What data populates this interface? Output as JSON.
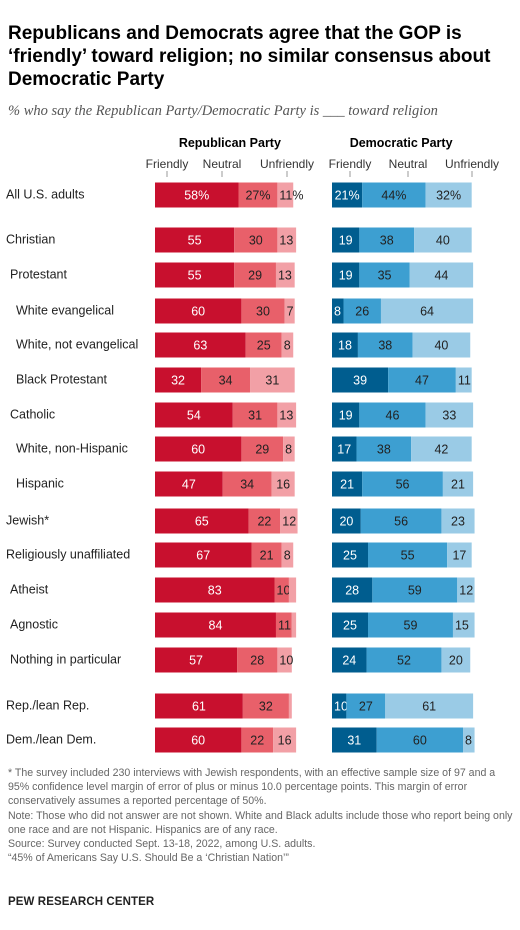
{
  "title": "Republicans and Democrats agree that the GOP is ‘friendly’ toward religion; no similar consensus about Democratic Party",
  "subtitle": "% who say the Republican Party/Democratic Party is ___ toward religion",
  "colors": {
    "rep": [
      "#c8102e",
      "#e8606a",
      "#f2a0a6"
    ],
    "dem": [
      "#005d8f",
      "#3d9fd1",
      "#9acbe6"
    ]
  },
  "chart_data": {
    "type": "bar",
    "orientation": "horizontal-stacked",
    "panels": [
      {
        "name": "Republican Party",
        "series": [
          "Friendly",
          "Neutral",
          "Unfriendly"
        ]
      },
      {
        "name": "Democratic Party",
        "series": [
          "Friendly",
          "Neutral",
          "Unfriendly"
        ]
      }
    ],
    "rows": [
      {
        "label": "All U.S. adults",
        "indent": 0,
        "rep": [
          58,
          27,
          11
        ],
        "dem": [
          21,
          44,
          32
        ],
        "pct": true
      },
      {
        "label": "Christian",
        "indent": 0,
        "rep": [
          55,
          30,
          13
        ],
        "dem": [
          19,
          38,
          40
        ]
      },
      {
        "label": "Protestant",
        "indent": 1,
        "rep": [
          55,
          29,
          13
        ],
        "dem": [
          19,
          35,
          44
        ]
      },
      {
        "label": "White evangelical",
        "indent": 2,
        "rep": [
          60,
          30,
          7
        ],
        "dem": [
          8,
          26,
          64
        ]
      },
      {
        "label": "White, not evangelical",
        "indent": 2,
        "rep": [
          63,
          25,
          8
        ],
        "dem": [
          18,
          38,
          40
        ]
      },
      {
        "label": "Black Protestant",
        "indent": 2,
        "rep": [
          32,
          34,
          31
        ],
        "dem": [
          39,
          47,
          11
        ]
      },
      {
        "label": "Catholic",
        "indent": 1,
        "rep": [
          54,
          31,
          13
        ],
        "dem": [
          19,
          46,
          33
        ]
      },
      {
        "label": "White, non-Hispanic",
        "indent": 2,
        "rep": [
          60,
          29,
          8
        ],
        "dem": [
          17,
          38,
          42
        ]
      },
      {
        "label": "Hispanic",
        "indent": 2,
        "rep": [
          47,
          34,
          16
        ],
        "dem": [
          21,
          56,
          21
        ]
      },
      {
        "label": "Jewish*",
        "indent": 0,
        "rep": [
          65,
          22,
          12
        ],
        "dem": [
          20,
          56,
          23
        ]
      },
      {
        "label": "Religiously unaffiliated",
        "indent": 0,
        "rep": [
          67,
          21,
          8
        ],
        "dem": [
          25,
          55,
          17
        ]
      },
      {
        "label": "Atheist",
        "indent": 1,
        "rep": [
          83,
          10,
          5
        ],
        "dem": [
          28,
          59,
          12
        ],
        "hide": {
          "rep": [
            2
          ]
        }
      },
      {
        "label": "Agnostic",
        "indent": 1,
        "rep": [
          84,
          11,
          3
        ],
        "dem": [
          25,
          59,
          15
        ],
        "hide": {
          "rep": [
            2
          ]
        }
      },
      {
        "label": "Nothing in particular",
        "indent": 1,
        "rep": [
          57,
          28,
          10
        ],
        "dem": [
          24,
          52,
          20
        ]
      },
      {
        "label": "Rep./lean Rep.",
        "indent": 0,
        "rep": [
          61,
          32,
          2
        ],
        "dem": [
          10,
          27,
          61
        ],
        "hide": {
          "rep": [
            2
          ]
        }
      },
      {
        "label": "Dem./lean Dem.",
        "indent": 0,
        "rep": [
          60,
          22,
          16
        ],
        "dem": [
          31,
          60,
          8
        ]
      }
    ]
  },
  "notes": [
    "* The survey included 230 interviews with Jewish respondents, with an effective sample size of 97 and a 95% confidence level margin of error of plus or minus 10.0 percentage points. This margin of error conservatively assumes a reported percentage of 50%.",
    "Note: Those who did not answer are not shown. White and Black adults include those who report being only one race and are not Hispanic. Hispanics are of any race.",
    "Source: Survey conducted Sept. 13-18, 2022, among U.S. adults.",
    "“45% of Americans Say U.S. Should Be a ‘Christian Nation’”"
  ],
  "brand": "PEW RESEARCH CENTER"
}
